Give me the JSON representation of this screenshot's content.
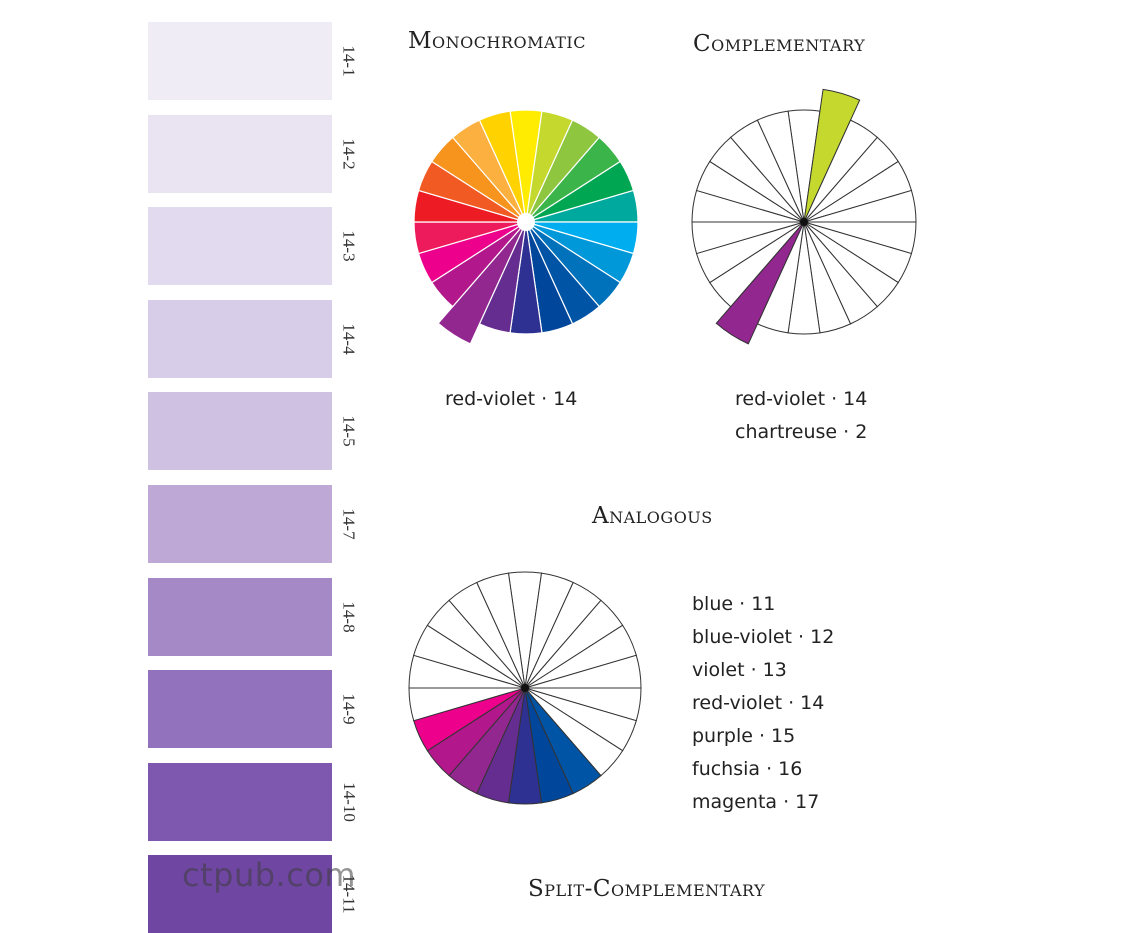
{
  "swatches": [
    {
      "label": "14-1",
      "color": "#f0ecf6"
    },
    {
      "label": "14-2",
      "color": "#e9e3f2"
    },
    {
      "label": "14-3",
      "color": "#e2daee"
    },
    {
      "label": "14-4",
      "color": "#d8cde8"
    },
    {
      "label": "14-5",
      "color": "#cec1e2"
    },
    {
      "label": "14-7",
      "color": "#bea9d6"
    },
    {
      "label": "14-8",
      "color": "#a589c7"
    },
    {
      "label": "14-9",
      "color": "#9272bc"
    },
    {
      "label": "14-10",
      "color": "#7e58ae"
    },
    {
      "label": "14-11",
      "color": "#6f47a3"
    }
  ],
  "wheel_colors": [
    "#ffec00",
    "#c4d82e",
    "#8ec63f",
    "#3bb54a",
    "#00a651",
    "#00a99d",
    "#00aeef",
    "#0098d9",
    "#0072bc",
    "#0054a6",
    "#00469a",
    "#2e3192",
    "#662d91",
    "#92278f",
    "#b3178c",
    "#ec008c",
    "#ed1b5c",
    "#ed1c24",
    "#f15a22",
    "#f7941d",
    "#fbb040",
    "#ffd200"
  ],
  "sections": {
    "monochromatic": {
      "title": "Monochromatic",
      "caption": "red-violet · 14",
      "highlight": [
        13
      ]
    },
    "complementary": {
      "title": "Complementary",
      "captions": [
        "red-violet · 14",
        "chartreuse · 2"
      ],
      "highlight": [
        13,
        1
      ]
    },
    "analogous": {
      "title": "Analogous",
      "items": [
        "blue · 11",
        "blue-violet · 12",
        "violet · 13",
        "red-violet  · 14",
        "purple · 15",
        "fuchsia · 16",
        "magenta · 17"
      ],
      "highlight": [
        9,
        10,
        11,
        12,
        13,
        14,
        15
      ]
    },
    "split_complementary": {
      "title": "Split-Complementary"
    }
  },
  "watermark": "ctpub.com"
}
